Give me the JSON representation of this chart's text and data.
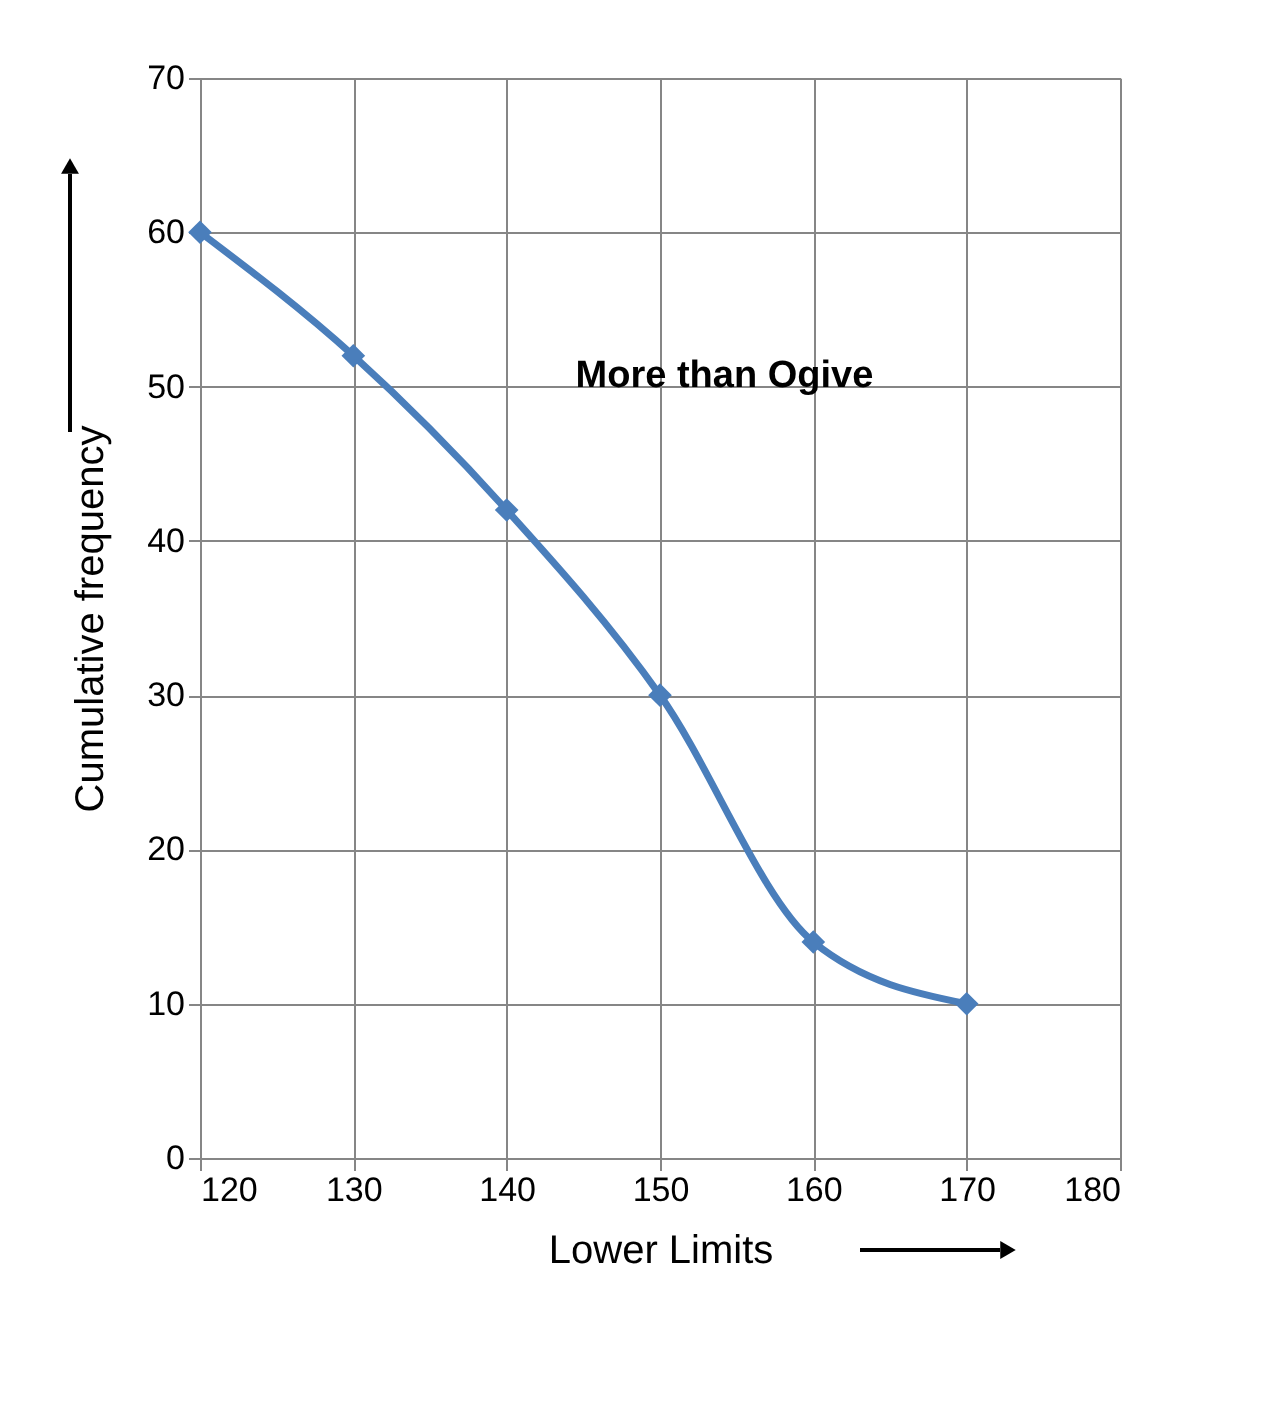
{
  "chart_data": {
    "type": "line",
    "xlabel": "Lower Limits",
    "ylabel": "Cumulative frequency",
    "annotations": [
      "More than Ogive"
    ],
    "x": [
      120,
      130,
      140,
      150,
      160,
      170
    ],
    "series": [
      {
        "color": "#4a7ebb",
        "values": [
          60,
          52,
          42,
          30,
          14,
          10
        ]
      }
    ],
    "xlim": [
      120,
      180
    ],
    "xticks": [
      120,
      130,
      140,
      150,
      160,
      170,
      180
    ],
    "ylim": [
      0,
      70
    ],
    "yticks": [
      0,
      10,
      20,
      30,
      40,
      50,
      60,
      70
    ],
    "grid": true,
    "marker": "diamond",
    "line_style": "solid"
  }
}
